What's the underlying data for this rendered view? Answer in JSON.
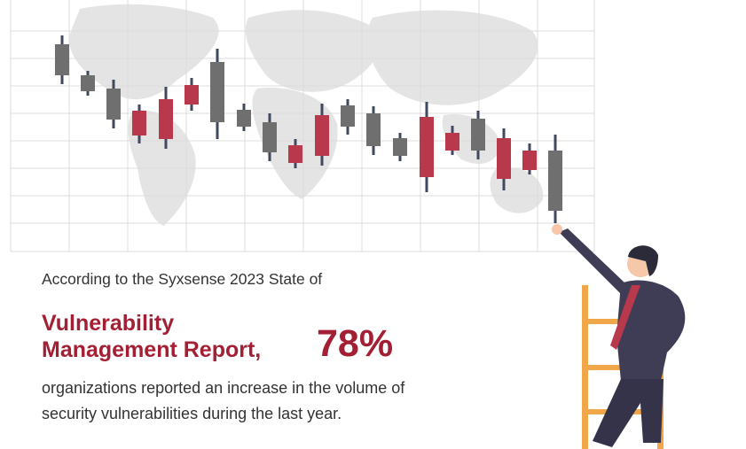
{
  "intro": "According to the Syxsense 2023 State of",
  "headline": {
    "line1": "Vulnerability",
    "line2": "Management Report,",
    "stat": "78%"
  },
  "body": {
    "line1": "organizations reported an increase in the  volume of",
    "line2": "security vulnerabilities during the last year."
  }
}
